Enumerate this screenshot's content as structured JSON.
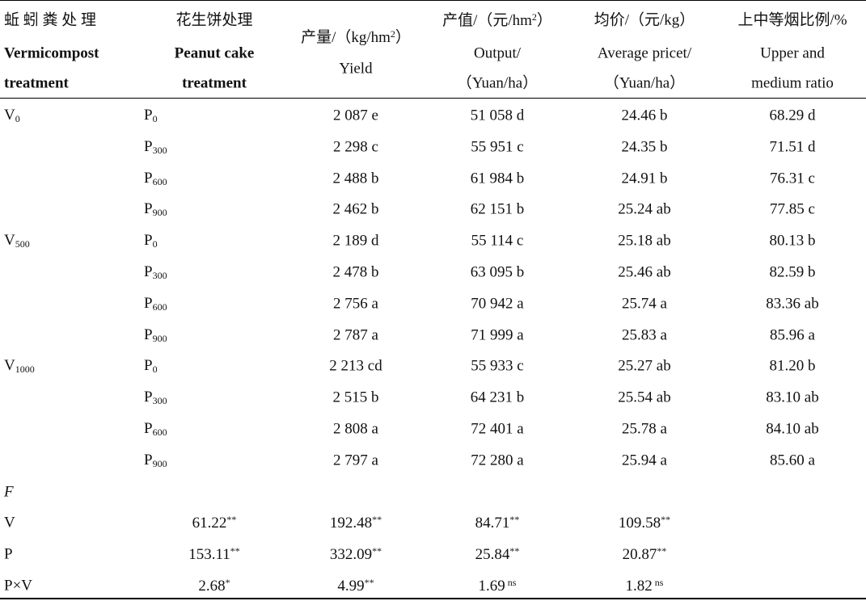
{
  "header": {
    "columns": [
      {
        "lines": [
          "蚯 蚓 粪 处 理",
          "Vermicompost",
          "treatment"
        ]
      },
      {
        "lines": [
          "花生饼处理",
          "Peanut cake",
          "treatment"
        ]
      },
      {
        "lines": [
          {
            "pre": "产量/（kg/hm",
            "sup": "2",
            "post": "）"
          },
          "Yield"
        ]
      },
      {
        "lines": [
          {
            "pre": "产值/（元/hm",
            "sup": "2",
            "post": "）"
          },
          "Output/",
          "（Yuan/ha）"
        ]
      },
      {
        "lines": [
          "均价/（元/kg）",
          "Average pricet/",
          "（Yuan/ha）"
        ]
      },
      {
        "lines": [
          "上中等烟比例/%",
          "Upper and",
          "medium ratio"
        ]
      }
    ]
  },
  "rows": [
    {
      "v": {
        "base": "V",
        "sub": "0"
      },
      "p": {
        "base": "P",
        "sub": "0"
      },
      "values": [
        "2 087 e",
        "51 058 d",
        "24.46 b",
        "68.29 d"
      ]
    },
    {
      "p": {
        "base": "P",
        "sub": "300"
      },
      "values": [
        "2 298 c",
        "55 951 c",
        "24.35 b",
        "71.51 d"
      ]
    },
    {
      "p": {
        "base": "P",
        "sub": "600"
      },
      "values": [
        "2 488 b",
        "61 984 b",
        "24.91 b",
        "76.31 c"
      ]
    },
    {
      "p": {
        "base": "P",
        "sub": "900"
      },
      "values": [
        "2 462 b",
        "62 151 b",
        "25.24 ab",
        "77.85 c"
      ]
    },
    {
      "v": {
        "base": "V",
        "sub": "500"
      },
      "p": {
        "base": "P",
        "sub": "0"
      },
      "values": [
        "2 189 d",
        "55 114 c",
        "25.18 ab",
        "80.13 b"
      ]
    },
    {
      "p": {
        "base": "P",
        "sub": "300"
      },
      "values": [
        "2 478 b",
        "63 095 b",
        "25.46 ab",
        "82.59 b"
      ]
    },
    {
      "p": {
        "base": "P",
        "sub": "600"
      },
      "values": [
        "2 756 a",
        "70 942 a",
        "25.74 a",
        "83.36 ab"
      ]
    },
    {
      "p": {
        "base": "P",
        "sub": "900"
      },
      "values": [
        "2 787 a",
        "71 999 a",
        "25.83 a",
        "85.96 a"
      ]
    },
    {
      "v": {
        "base": "V",
        "sub": "1000"
      },
      "p": {
        "base": "P",
        "sub": "0"
      },
      "values": [
        "2 213 cd",
        "55 933 c",
        "25.27 ab",
        "81.20 b"
      ]
    },
    {
      "p": {
        "base": "P",
        "sub": "300"
      },
      "values": [
        "2 515 b",
        "64 231 b",
        "25.54 ab",
        "83.10 ab"
      ]
    },
    {
      "p": {
        "base": "P",
        "sub": "600"
      },
      "values": [
        "2 808 a",
        "72 401 a",
        "25.78 a",
        "84.10 ab"
      ]
    },
    {
      "p": {
        "base": "P",
        "sub": "900"
      },
      "values": [
        "2 797 a",
        "72 280 a",
        "25.94 a",
        "85.60 a"
      ]
    }
  ],
  "f_label": "F",
  "f_rows": [
    {
      "label": "V",
      "values": [
        {
          "value": "61.22",
          "sig": "**"
        },
        {
          "value": "192.48",
          "sig": "**"
        },
        {
          "value": "84.71",
          "sig": "**"
        },
        {
          "value": "109.58",
          "sig": "**"
        }
      ]
    },
    {
      "label": "P",
      "values": [
        {
          "value": "153.11",
          "sig": "**"
        },
        {
          "value": "332.09",
          "sig": "**"
        },
        {
          "value": "25.84",
          "sig": "**"
        },
        {
          "value": "20.87",
          "sig": "**"
        }
      ]
    },
    {
      "label": "P×V",
      "values": [
        {
          "value": "2.68",
          "sig": "*"
        },
        {
          "value": "4.99",
          "sig": "**"
        },
        {
          "value": "1.69",
          "sig": " ns"
        },
        {
          "value": "1.82",
          "sig": " ns"
        }
      ]
    }
  ]
}
